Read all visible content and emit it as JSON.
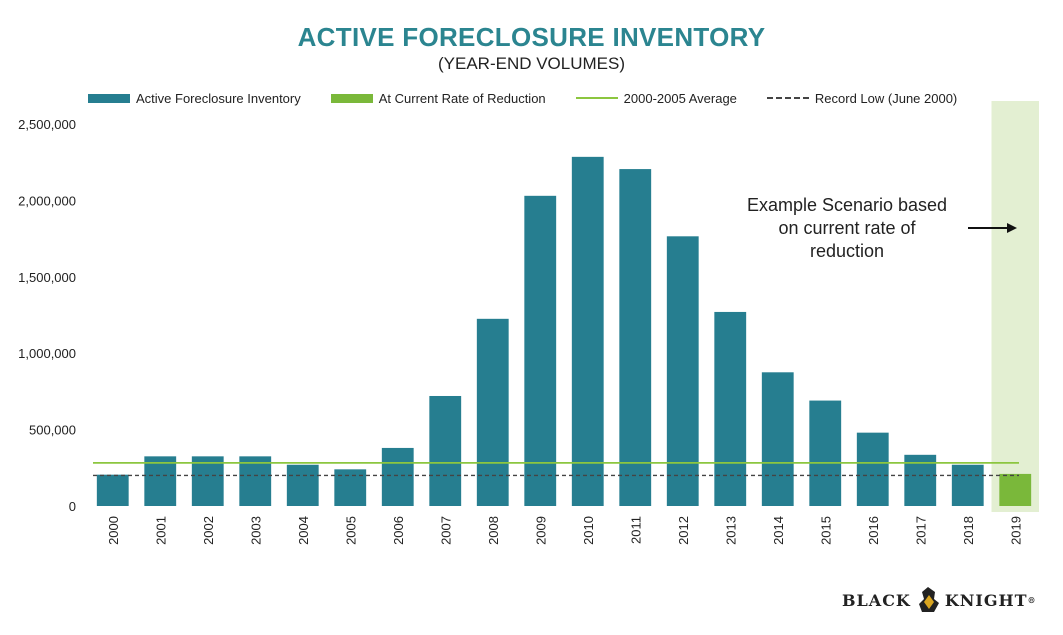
{
  "header": {
    "title": "ACTIVE FORECLOSURE INVENTORY",
    "subtitle": "(YEAR-END VOLUMES)"
  },
  "legend": [
    {
      "label": "Active Foreclosure Inventory",
      "kind": "bar",
      "color": "#267e90"
    },
    {
      "label": "At Current Rate of Reduction",
      "kind": "bar",
      "color": "#7ab83a"
    },
    {
      "label": "2000-2005 Average",
      "kind": "line",
      "color": "#8cc63f"
    },
    {
      "label": "Record Low (June 2000)",
      "kind": "dashed",
      "color": "#444444"
    }
  ],
  "annotation": {
    "lines": [
      "Example Scenario based",
      "on current rate of",
      "reduction"
    ]
  },
  "logo": {
    "left": "BLACK",
    "right": "KNIGHT",
    "tm": "®"
  },
  "chart_data": {
    "type": "bar",
    "title": "ACTIVE FORECLOSURE INVENTORY",
    "subtitle": "(YEAR-END VOLUMES)",
    "categories": [
      "2000",
      "2001",
      "2002",
      "2003",
      "2004",
      "2005",
      "2006",
      "2007",
      "2008",
      "2009",
      "2010",
      "2011",
      "2012",
      "2013",
      "2014",
      "2015",
      "2016",
      "2017",
      "2018",
      "2019"
    ],
    "series": [
      {
        "name": "Active Foreclosure Inventory",
        "color": "#267e90",
        "values": [
          205000,
          325000,
          325000,
          325000,
          270000,
          240000,
          380000,
          720000,
          1225000,
          2030000,
          2285000,
          2205000,
          1765000,
          1270000,
          875000,
          690000,
          480000,
          335000,
          270000,
          null
        ]
      },
      {
        "name": "At Current Rate of Reduction",
        "color": "#7ab83a",
        "values": [
          null,
          null,
          null,
          null,
          null,
          null,
          null,
          null,
          null,
          null,
          null,
          null,
          null,
          null,
          null,
          null,
          null,
          null,
          null,
          210000
        ]
      }
    ],
    "reference_lines": [
      {
        "name": "2000-2005 Average",
        "value": 282000,
        "style": "solid",
        "color": "#8cc63f"
      },
      {
        "name": "Record Low (June 2000)",
        "value": 200000,
        "style": "dashed",
        "color": "#444444"
      }
    ],
    "yticks": [
      "0",
      "500,000",
      "1,000,000",
      "1,500,000",
      "2,000,000",
      "2,500,000"
    ],
    "ytick_values": [
      0,
      500000,
      1000000,
      1500000,
      2000000,
      2500000
    ],
    "ylim": [
      0,
      2500000
    ],
    "highlight_category": "2019",
    "highlight_color": "#e3efd2",
    "grid": false,
    "legend_position": "top"
  }
}
